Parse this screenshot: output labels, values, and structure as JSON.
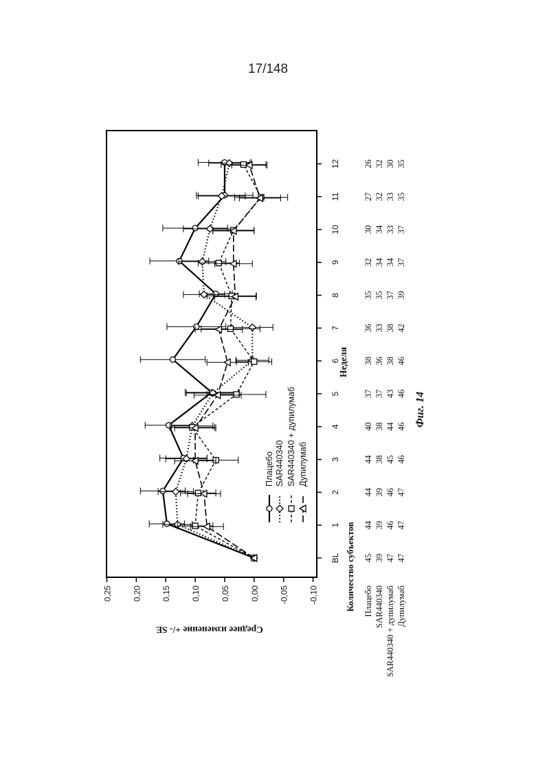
{
  "page_number": "17/148",
  "chart_data": {
    "type": "line",
    "orientation": "rotated-90-counterclockwise",
    "xlabel": "Неделя",
    "ylabel": "Среднее изменение +/- SE",
    "caption": "Фиг. 14",
    "x": [
      "BL",
      "1",
      "2",
      "3",
      "4",
      "5",
      "6",
      "7",
      "8",
      "9",
      "10",
      "11",
      "12"
    ],
    "ylim": [
      -0.1,
      0.25
    ],
    "y_ticks": [
      "-0,10",
      "-0,05",
      "0,00",
      "0,05",
      "0,10",
      "0,15",
      "0,20",
      "0,25"
    ],
    "grid": false,
    "legend_position": "inside-lower-left",
    "series": [
      {
        "name": "Плацебо",
        "marker": "circle",
        "line_style": "solid",
        "values": [
          0.0,
          0.148,
          0.155,
          0.12,
          0.145,
          0.072,
          0.138,
          0.098,
          0.065,
          0.127,
          0.1,
          0.05,
          0.05
        ],
        "se": [
          0,
          0.03,
          0.038,
          0.04,
          0.04,
          0.045,
          0.055,
          0.05,
          0.028,
          0.05,
          0.055,
          0.048,
          0.045
        ]
      },
      {
        "name": "SAR440340",
        "marker": "diamond",
        "line_style": "dotted",
        "values": [
          0.0,
          0.13,
          0.133,
          0.115,
          0.105,
          0.07,
          0.003,
          0.003,
          0.085,
          0.088,
          0.075,
          0.055,
          0.042
        ],
        "se": [
          0,
          0.025,
          0.03,
          0.035,
          0.035,
          0.045,
          0.028,
          0.035,
          0.035,
          0.04,
          0.045,
          0.04,
          0.035
        ]
      },
      {
        "name": "SAR440340 + дупилумаб",
        "marker": "square",
        "line_style": "dashed",
        "values": [
          0.0,
          0.1,
          0.095,
          0.065,
          0.105,
          0.03,
          0.0,
          0.04,
          0.038,
          0.06,
          0.035,
          -0.012,
          0.018
        ],
        "se": [
          0,
          0.03,
          0.03,
          0.038,
          0.038,
          0.05,
          0.03,
          0.05,
          0.042,
          0.035,
          0.035,
          0.045,
          0.038
        ]
      },
      {
        "name": "Дупилумаб",
        "marker": "triangle",
        "line_style": "long-dash",
        "values": [
          0.0,
          0.08,
          0.085,
          0.1,
          0.1,
          0.062,
          0.045,
          0.06,
          0.032,
          0.035,
          0.035,
          -0.01,
          0.008
        ],
        "se": [
          0,
          0.028,
          0.028,
          0.035,
          0.035,
          0.04,
          0.035,
          0.04,
          0.035,
          0.032,
          0.035,
          0.035,
          0.03
        ]
      }
    ],
    "subjects_table": {
      "title": "Количество субъектов",
      "rows": [
        {
          "label": "Плацебо",
          "counts": [
            "45",
            "44",
            "44",
            "44",
            "40",
            "37",
            "38",
            "36",
            "35",
            "32",
            "30",
            "27",
            "26"
          ]
        },
        {
          "label": "SAR440340",
          "counts": [
            "39",
            "39",
            "39",
            "38",
            "38",
            "37",
            "36",
            "33",
            "35",
            "34",
            "34",
            "32",
            "32"
          ]
        },
        {
          "label": "SAR440340 + дупилумаб",
          "counts": [
            "47",
            "46",
            "46",
            "45",
            "44",
            "43",
            "38",
            "38",
            "37",
            "34",
            "33",
            "33",
            "30"
          ]
        },
        {
          "label": "Дупилумаб",
          "counts": [
            "47",
            "47",
            "47",
            "46",
            "46",
            "46",
            "46",
            "42",
            "39",
            "37",
            "37",
            "35",
            "35"
          ]
        }
      ]
    }
  }
}
